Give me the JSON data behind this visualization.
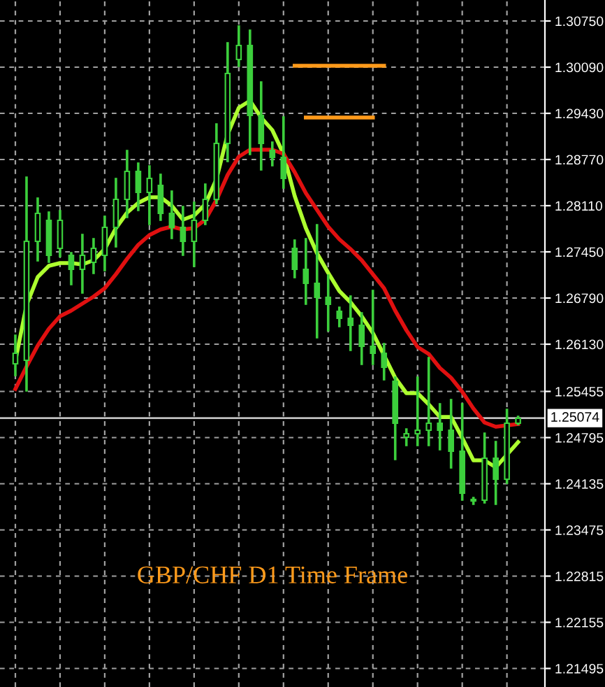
{
  "chart_data": {
    "type": "candlestick",
    "categories": [
      null,
      null,
      null,
      null,
      null,
      null,
      null,
      null,
      null,
      null,
      null,
      null,
      null,
      null,
      null,
      null,
      null,
      null,
      null,
      null,
      null,
      null,
      null,
      null,
      null,
      null,
      null,
      null,
      null,
      null,
      null,
      null,
      null,
      null,
      null,
      null,
      null,
      null,
      null,
      null,
      null,
      null,
      null,
      null,
      null,
      null
    ],
    "series": [
      {
        "type": "line",
        "color": "#adff2f",
        "values": [
          1.2589,
          1.2669,
          1.2709,
          1.2725,
          1.2729,
          1.2729,
          1.2727,
          1.2733,
          1.2749,
          1.2779,
          1.2801,
          1.2815,
          1.2823,
          1.2823,
          1.2811,
          1.2791,
          1.2797,
          1.2813,
          1.2849,
          1.2913,
          1.2951,
          1.2961,
          1.2937,
          1.2919,
          1.2885,
          1.2825,
          1.2779,
          1.2743,
          1.2715,
          1.2689,
          1.2673,
          1.2653,
          1.2629,
          1.2597,
          1.2565,
          1.2543,
          1.2543,
          1.2527,
          1.2509,
          1.2509,
          1.2479,
          1.2447,
          1.2447,
          1.2437,
          1.2455,
          1.2473
        ]
      },
      {
        "type": "line",
        "color": "#e01010",
        "values": [
          1.2549,
          1.2581,
          1.2611,
          1.2635,
          1.2653,
          1.2661,
          1.2671,
          1.2681,
          1.2693,
          1.2713,
          1.2735,
          1.2755,
          1.2769,
          1.2777,
          1.2781,
          1.2777,
          1.2779,
          1.2791,
          1.2819,
          1.2855,
          1.2881,
          1.2891,
          1.2891,
          1.2891,
          1.2885,
          1.2859,
          1.2829,
          1.2805,
          1.2781,
          1.2763,
          1.2749,
          1.2733,
          1.2713,
          1.2693,
          1.2661,
          1.2633,
          1.2609,
          1.2599,
          1.2579,
          1.2565,
          1.2545,
          1.2521,
          1.2501,
          1.2495,
          1.2497,
          1.2499
        ]
      },
      {
        "type": "line",
        "color": "#ff9a1a",
        "values": [
          null,
          null,
          null,
          null,
          null,
          null,
          null,
          null,
          null,
          null,
          null,
          null,
          null,
          null,
          null,
          null,
          null,
          null,
          null,
          null,
          null,
          null,
          null,
          null,
          null,
          1.3011,
          1.3011,
          1.3011,
          1.3011,
          1.3011,
          1.3011,
          1.3011,
          1.3011,
          1.3011,
          null,
          null,
          null,
          null,
          null,
          null,
          null,
          null,
          null,
          null,
          null,
          null
        ]
      },
      {
        "type": "line",
        "color": "#ff9a1a",
        "values": [
          null,
          null,
          null,
          null,
          null,
          null,
          null,
          null,
          null,
          null,
          null,
          null,
          null,
          null,
          null,
          null,
          null,
          null,
          null,
          null,
          null,
          null,
          null,
          null,
          null,
          null,
          1.2937,
          1.2937,
          1.2937,
          1.2937,
          1.2937,
          1.2937,
          1.2937,
          null,
          null,
          null,
          null,
          null,
          null,
          null,
          null,
          null,
          null,
          null,
          null,
          null
        ]
      },
      {
        "color": "#3ccf3c",
        "ohlc": [
          [
            1.2585,
            1.2625,
            1.2569,
            1.26
          ],
          [
            1.259,
            1.2851,
            1.2547,
            1.276
          ],
          [
            1.276,
            1.2821,
            1.2733,
            1.28
          ],
          [
            1.279,
            1.2801,
            1.2731,
            1.274
          ],
          [
            1.275,
            1.2803,
            1.2739,
            1.279
          ],
          [
            1.274,
            1.2743,
            1.2699,
            1.272
          ],
          [
            1.272,
            1.2769,
            1.2687,
            1.274
          ],
          [
            1.273,
            1.2763,
            1.2715,
            1.275
          ],
          [
            1.274,
            1.2795,
            1.2719,
            1.278
          ],
          [
            1.278,
            1.2849,
            1.2753,
            1.282
          ],
          [
            1.282,
            1.2889,
            1.2795,
            1.286
          ],
          [
            1.286,
            1.2871,
            1.2805,
            1.283
          ],
          [
            1.283,
            1.2867,
            1.2785,
            1.285
          ],
          [
            1.284,
            1.2855,
            1.2791,
            1.28
          ],
          [
            1.28,
            1.2831,
            1.2765,
            1.278
          ],
          [
            1.278,
            1.2809,
            1.2741,
            1.276
          ],
          [
            1.276,
            1.2815,
            1.2725,
            1.279
          ],
          [
            1.279,
            1.2841,
            1.2785,
            1.282
          ],
          [
            1.282,
            1.2927,
            1.2815,
            1.29
          ],
          [
            1.29,
            1.3043,
            1.2875,
            1.3
          ],
          [
            1.302,
            1.3067,
            1.3011,
            1.304
          ],
          [
            1.304,
            1.3061,
            1.2885,
            1.294
          ],
          [
            1.294,
            1.2987,
            1.2863,
            1.29
          ],
          [
            1.289,
            1.2901,
            1.2869,
            1.288
          ],
          [
            1.288,
            1.2937,
            1.2837,
            1.285
          ],
          [
            1.275,
            1.2761,
            1.2709,
            1.272
          ],
          [
            1.272,
            1.2763,
            1.2671,
            1.27
          ],
          [
            1.27,
            1.2783,
            1.2623,
            1.268
          ],
          [
            1.268,
            1.2711,
            1.2633,
            1.267
          ],
          [
            1.266,
            1.2665,
            1.2639,
            1.265
          ],
          [
            1.265,
            1.2681,
            1.2605,
            1.264
          ],
          [
            1.264,
            1.2657,
            1.2585,
            1.261
          ],
          [
            1.261,
            1.2689,
            1.2585,
            1.26
          ],
          [
            1.26,
            1.2613,
            1.2563,
            1.258
          ],
          [
            1.256,
            1.2565,
            1.2449,
            1.25
          ],
          [
            1.248,
            1.2491,
            1.2469,
            1.2485
          ],
          [
            1.2485,
            1.2565,
            1.2469,
            1.249
          ],
          [
            1.249,
            1.2593,
            1.2469,
            1.25
          ],
          [
            1.25,
            1.2527,
            1.2463,
            1.249
          ],
          [
            1.249,
            1.2533,
            1.2437,
            1.246
          ],
          [
            1.246,
            1.2527,
            1.2391,
            1.24
          ],
          [
            1.2389,
            1.2393,
            1.2385,
            1.2391
          ],
          [
            1.239,
            1.2485,
            1.2387,
            1.245
          ],
          [
            1.245,
            1.2473,
            1.2385,
            1.242
          ],
          [
            1.242,
            1.2519,
            1.2415,
            1.25
          ],
          [
            1.25,
            1.2509,
            1.2499,
            1.2507
          ]
        ]
      }
    ],
    "ylim": [
      1.2123,
      1.3105
    ],
    "yticks": [
      {
        "value": 1.3075,
        "label": "1.30750"
      },
      {
        "value": 1.3009,
        "label": "1.30090"
      },
      {
        "value": 1.2943,
        "label": "1.29430"
      },
      {
        "value": 1.2877,
        "label": "1.28770"
      },
      {
        "value": 1.2811,
        "label": "1.28110"
      },
      {
        "value": 1.2745,
        "label": "1.27450"
      },
      {
        "value": 1.2679,
        "label": "1.26790"
      },
      {
        "value": 1.2613,
        "label": "1.26130"
      },
      {
        "value": 1.25455,
        "label": "1.25455"
      },
      {
        "value": 1.24795,
        "label": "1.24795"
      },
      {
        "value": 1.24135,
        "label": "1.24135"
      },
      {
        "value": 1.23475,
        "label": "1.23475"
      },
      {
        "value": 1.22815,
        "label": "1.22815"
      },
      {
        "value": 1.22155,
        "label": "1.22155"
      },
      {
        "value": 1.21495,
        "label": "1.21495"
      }
    ],
    "ref_lines": [
      {
        "axis": "y",
        "value": 1.25074,
        "label": "1.25074",
        "color": "#c0c0c0"
      }
    ],
    "annotations": [
      "GBP/CHF D1 Time Frame"
    ],
    "grid": true,
    "tick_labels": "y"
  }
}
